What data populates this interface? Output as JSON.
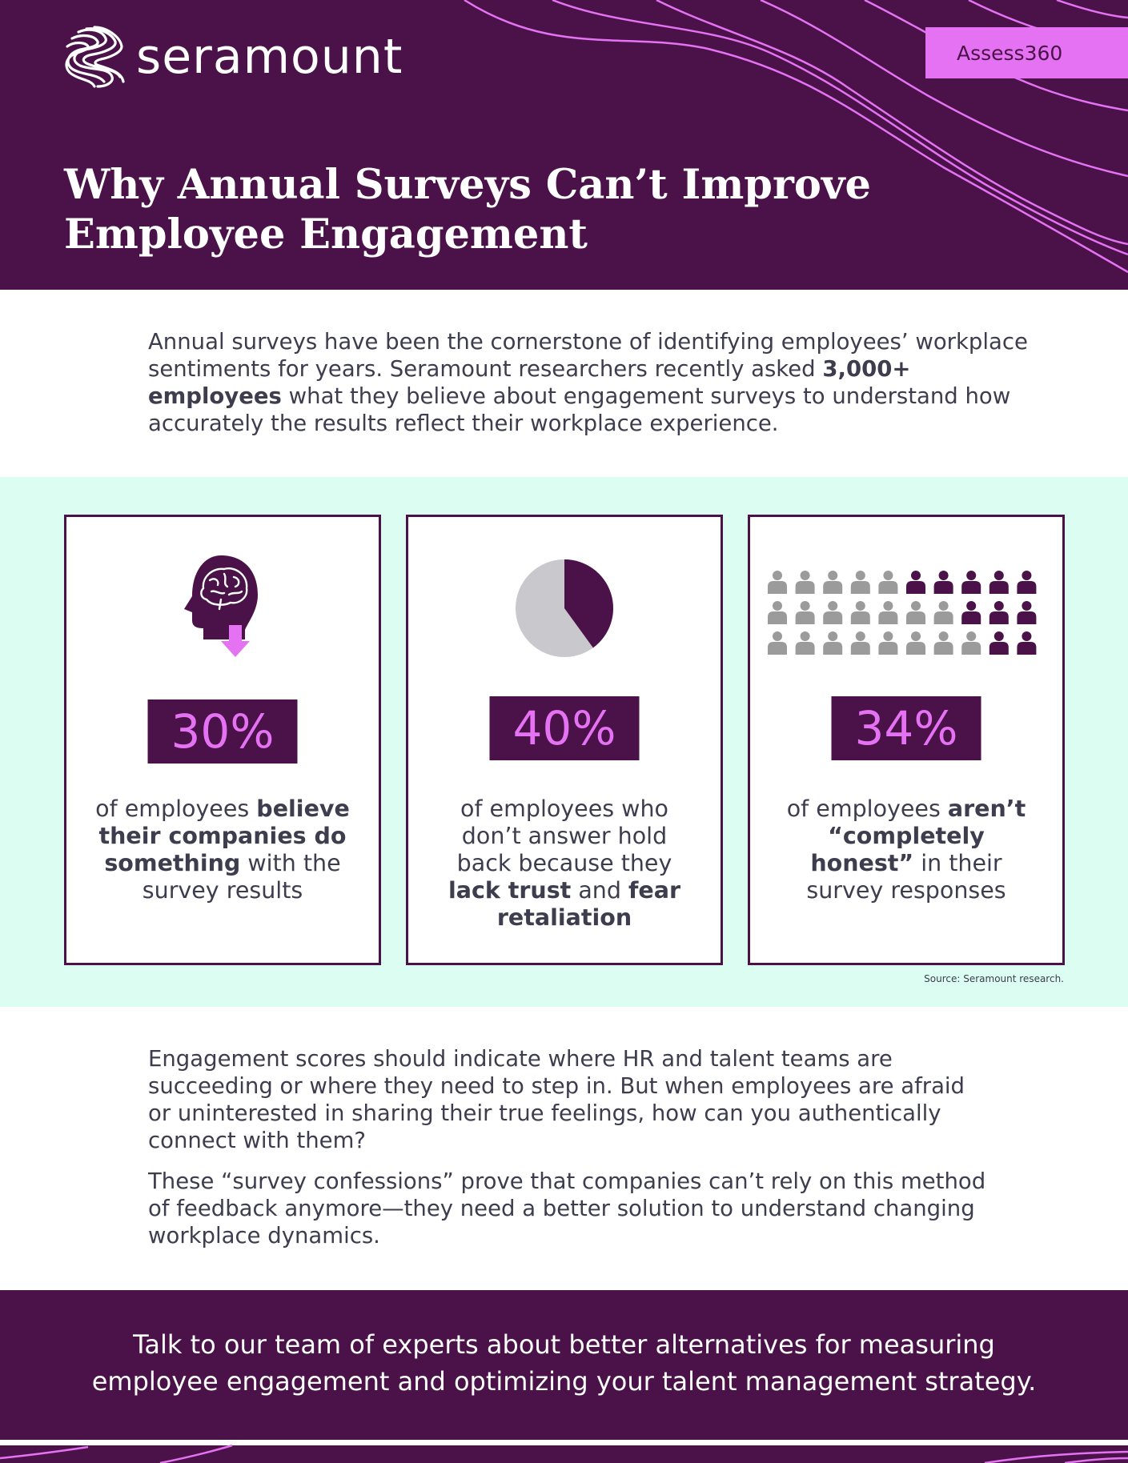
{
  "colors": {
    "brand_purple": "#4a1248",
    "accent_pink": "#e472f3",
    "mint": "#dcfdf2",
    "people_gray": "#9b9b9b"
  },
  "header": {
    "logo_text": "seramount",
    "logo_icon": "seramount-swirl-logo",
    "tag": "Assess360",
    "title_line1": "Why Annual Surveys Can’t Improve",
    "title_line2": "Employee Engagement"
  },
  "intro": {
    "part1": "Annual surveys have been the cornerstone of identifying employees’ workplace sentiments for years. Seramount researchers recently asked ",
    "bold": "3,000+ employees",
    "part2": " what they believe about engagement surveys to understand how accurately the results reflect their workplace experience."
  },
  "stats": [
    {
      "icon": "brain-head-down-arrow-icon",
      "percent": "30%",
      "caption": {
        "t1": "of employees ",
        "b1": "believe their companies do something",
        "t2": " with the survey results"
      }
    },
    {
      "icon": "pie-chart-icon",
      "percent": "40%",
      "pie_fraction": 0.4,
      "caption": {
        "t1": "of employees who don’t answer hold back because they ",
        "b1": "lack trust",
        "t2": " and ",
        "b2": "fear retaliation"
      }
    },
    {
      "icon": "people-grid-icon",
      "percent": "34%",
      "people_rows": [
        5,
        3,
        2
      ],
      "people_per_row": 10,
      "caption": {
        "t1": "of employees ",
        "b1": "aren’t “completely honest”",
        "t2": " in their survey responses"
      }
    }
  ],
  "source": "Source: Seramount research.",
  "body": {
    "p1": "Engagement scores should indicate where HR and talent teams are succeeding or where they need to step in. But when employees are afraid or uninterested in sharing their true feelings, how can you authentically connect with them?",
    "p2": "These “survey confessions” prove that companies can’t rely on this method of feedback anymore—they need a better solution to understand changing workplace dynamics."
  },
  "footer": {
    "cta_line1": "Talk to our team of experts about better alternatives for measuring",
    "cta_line2": "employee engagement and optimizing your talent management strategy."
  }
}
